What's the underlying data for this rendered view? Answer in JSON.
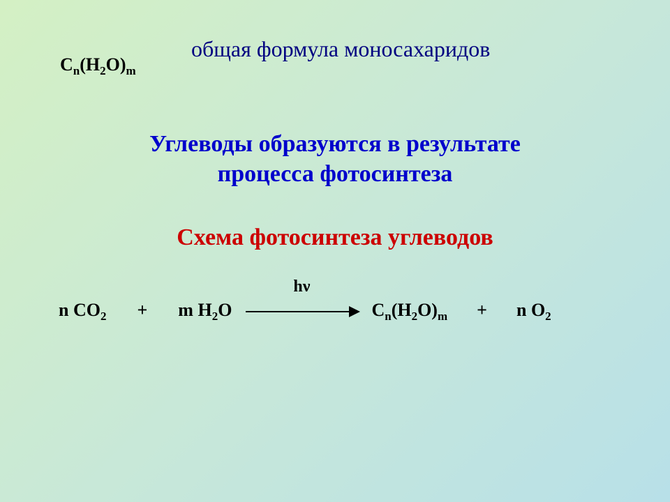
{
  "colors": {
    "title": "#000080",
    "heading1": "#0000cc",
    "heading2": "#cc0000",
    "body": "#000000",
    "bg_start": "#d4f0c4",
    "bg_mid": "#c8e8d8",
    "bg_end": "#b8e0e8"
  },
  "typography": {
    "title_fontsize": 32,
    "heading_fontsize": 34,
    "formula_fontsize": 26,
    "subscript_fontsize": 17,
    "font_family": "Times New Roman"
  },
  "title": "общая формула моносахаридов",
  "general_formula": {
    "parts": [
      "C",
      "n",
      "(H",
      "2",
      "O)",
      "m"
    ],
    "subscript_indices": [
      1,
      3,
      5
    ]
  },
  "heading1_line1": "Углеводы образуются в результате",
  "heading1_line2": "процесса фотосинтеза",
  "heading2": "Схема фотосинтеза углеводов",
  "equation": {
    "reactant1": {
      "coef": "n ",
      "base": "CO",
      "sub": "2"
    },
    "plus1": "+",
    "reactant2": {
      "coef": "m ",
      "base": "H",
      "sub": "2",
      "tail": "O"
    },
    "arrow_label": "hν",
    "product1_parts": [
      "C",
      "n",
      "(H",
      "2",
      "O)",
      "m"
    ],
    "product1_subscript_indices": [
      1,
      3,
      5
    ],
    "plus2": "+",
    "product2": {
      "coef": "n ",
      "base": "O",
      "sub": "2"
    }
  }
}
